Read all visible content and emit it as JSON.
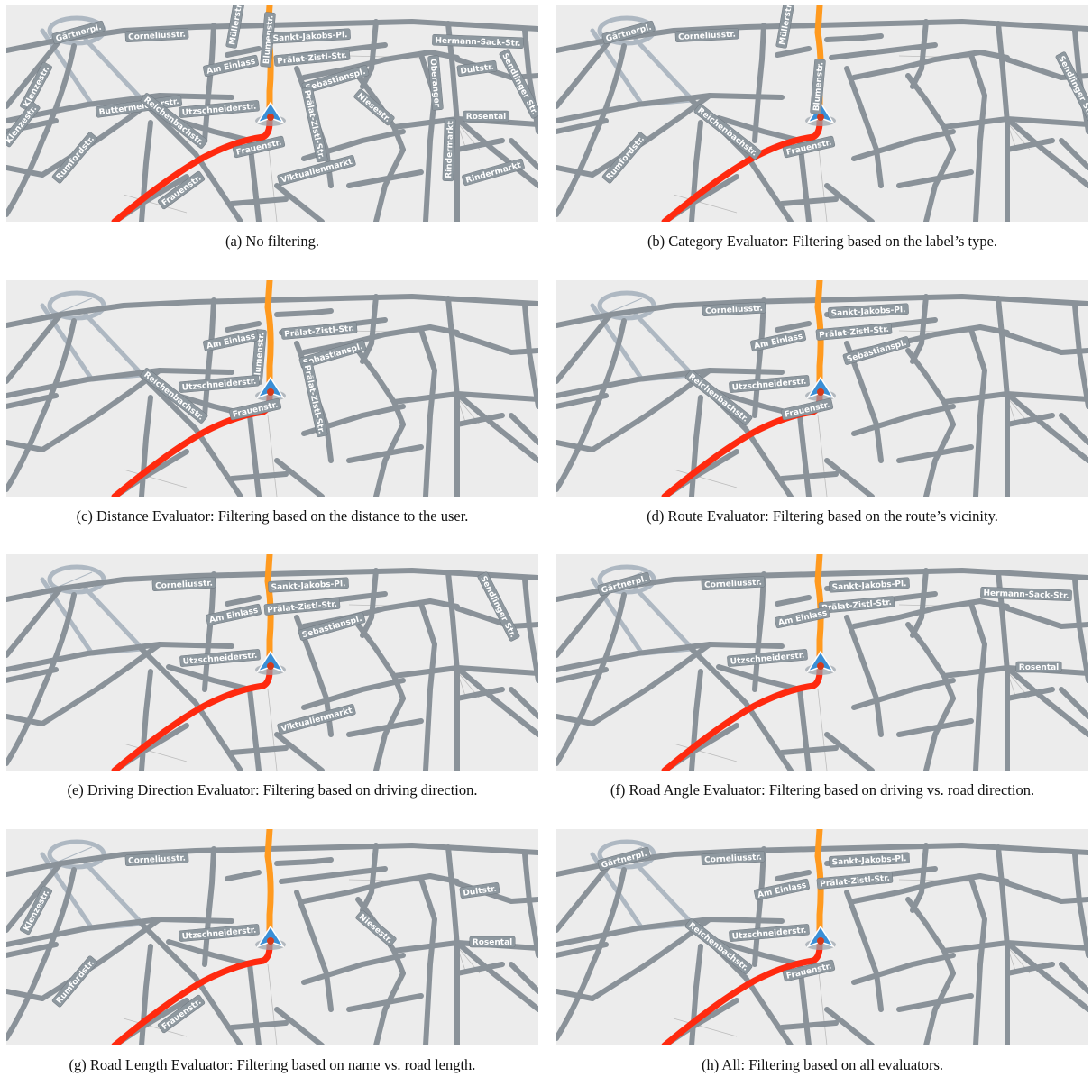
{
  "panels": [
    {
      "caption": "(a)  No filtering.",
      "labels": [
        "Gärtnerpl.",
        "Corneliusstr.",
        "Müllerstr.",
        "Blumenstr.",
        "Sankt-Jakobs-Pl.",
        "Hermann-Sack-Str.",
        "Prälat-Zistl-Str.",
        "Am Einlass",
        "Sebastianspl.",
        "Dultstr.",
        "Sendlinger Str.",
        "Oberanger",
        "Klenzestr.",
        "Buttermelcherstr.",
        "Reichenbachstr.",
        "Utzschneiderstr.",
        "Niesestr.",
        "Rosental",
        "Prälat-Zistl-Str.",
        "Rindermarkt",
        "Klenzestr.",
        "Rumfordstr.",
        "Frauenstr.",
        "Frauenstr.",
        "Viktualienmarkt",
        "Rindermarkt"
      ]
    },
    {
      "caption": "(b)  Category Evaluator: Filtering based on the label’s type.",
      "labels": [
        "Gärtnerpl.",
        "Corneliusstr.",
        "Müllerstr.",
        "Blumenstr.",
        "Sendlinger Str.",
        "Reichenbachstr.",
        "Rumfordstr.",
        "Frauenstr."
      ]
    },
    {
      "caption": "(c)  Distance Evaluator: Filtering based on the distance to the user.",
      "labels": [
        "Blumenstr.",
        "Prälat-Zistl-Str.",
        "Am Einlass",
        "Sebastianspl.",
        "Reichenbachstr.",
        "Utzschneiderstr.",
        "Prälat-Zistl-Str.",
        "Frauenstr."
      ]
    },
    {
      "caption": "(d)  Route Evaluator: Filtering based on the route’s vicinity.",
      "labels": [
        "Corneliusstr.",
        "Sankt-Jakobs-Pl.",
        "Prälat-Zistl-Str.",
        "Am Einlass",
        "Sebastianspl.",
        "Reichenbachstr.",
        "Utzschneiderstr.",
        "Frauenstr."
      ]
    },
    {
      "caption": "(e)  Driving Direction Evaluator: Filtering based on driving direction.",
      "labels": [
        "Corneliusstr.",
        "Sankt-Jakobs-Pl.",
        "Sendlinger Str.",
        "Prälat-Zistl-Str.",
        "Am Einlass",
        "Sebastianspl.",
        "Utzschneiderstr.",
        "Viktualienmarkt"
      ]
    },
    {
      "caption": "(f)  Road Angle Evaluator: Filtering based on driving vs. road direction.",
      "labels": [
        "Gärtnerpl.",
        "Corneliusstr.",
        "Sankt-Jakobs-Pl.",
        "Hermann-Sack-Str.",
        "Prälat-Zistl-Str.",
        "Am Einlass",
        "Utzschneiderstr.",
        "Rosental"
      ]
    },
    {
      "caption": "(g)  Road Length Evaluator: Filtering based on name vs. road length.",
      "labels": [
        "Corneliusstr.",
        "Dultstr.",
        "Klenzestr.",
        "Niesestr.",
        "Utzschneiderstr.",
        "Rosental",
        "Rumfordstr.",
        "Frauenstr."
      ]
    },
    {
      "caption": "(h)  All: Filtering based on all evaluators.",
      "labels": [
        "Gärtnerpl.",
        "Corneliusstr.",
        "Sankt-Jakobs-Pl.",
        "Prälat-Zistl-Str.",
        "Am Einlass",
        "Reichenbachstr.",
        "Utzschneiderstr.",
        "Frauenstr."
      ]
    }
  ],
  "colors": {
    "map_bg": "#ececec",
    "road": "#8a9299",
    "road_light": "#aeb8c2",
    "label_bg": "#8e989f",
    "route_near": "#ff2a0f",
    "route_far": "#ff9a1f",
    "marker": "#3a8fd6"
  },
  "icons": {
    "vehicle": "navigation-arrow-icon"
  }
}
